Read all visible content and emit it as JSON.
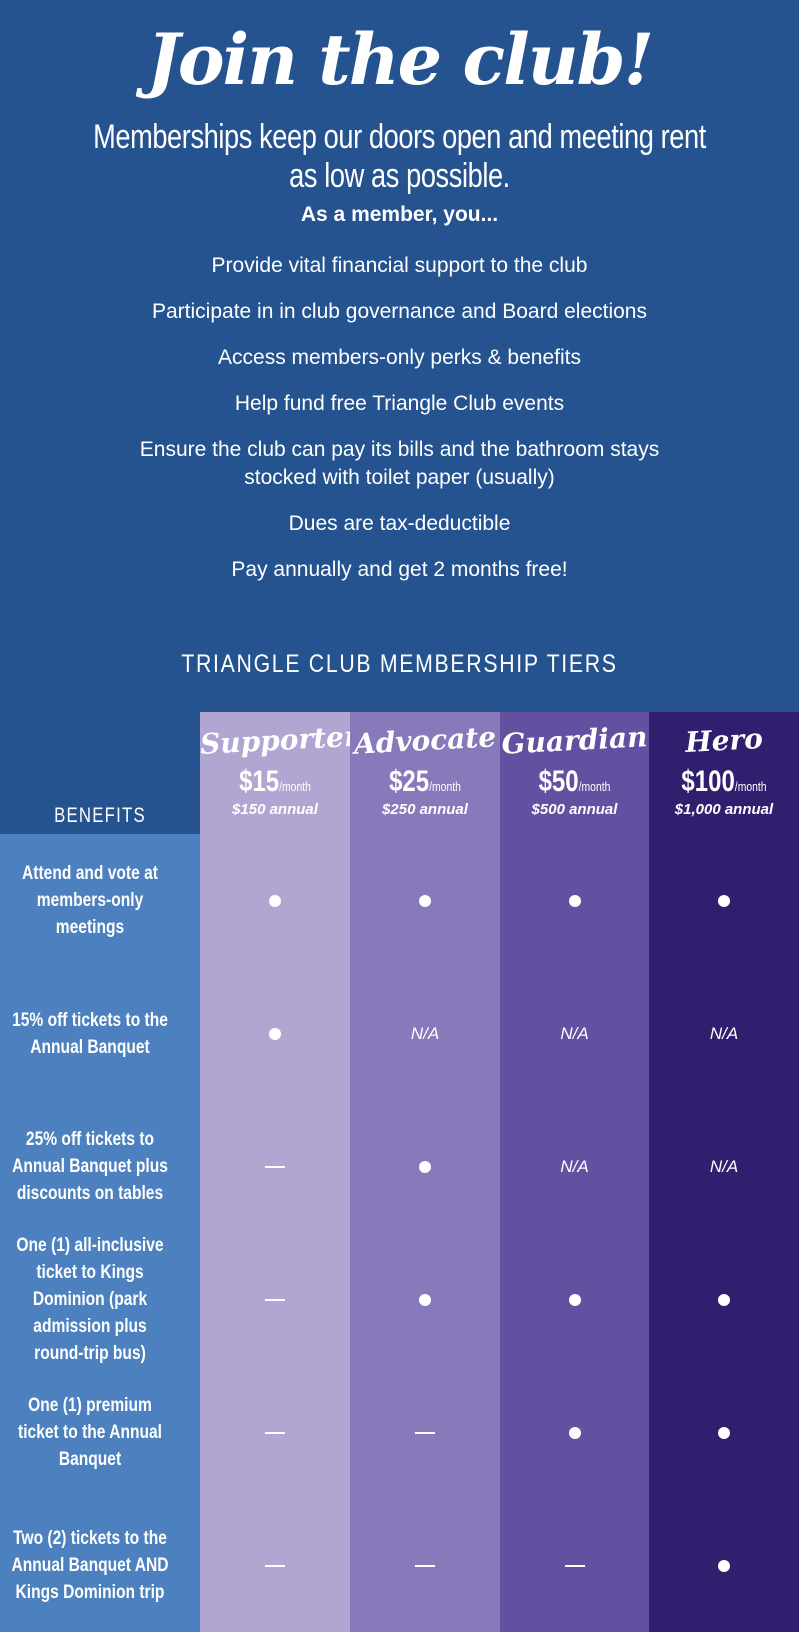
{
  "header": {
    "title": "Join the club!",
    "subtitle": "Memberships keep our doors open and meeting rent as low as possible.",
    "lead": "As a member, you...",
    "benefits_list": [
      "Provide vital financial support to the club",
      "Participate in in club governance and Board elections",
      "Access members-only perks & benefits",
      "Help fund free Triangle Club events",
      "Ensure the club can pay its bills and the bathroom stays stocked with toilet paper (usually)",
      "Dues are tax-deductible",
      "Pay annually and get 2 months free!"
    ]
  },
  "table": {
    "title": "TRIANGLE CLUB MEMBERSHIP TIERS",
    "benefits_header": "BENEFITS",
    "colors": {
      "background": "#25538f",
      "benefits": "#4c80be",
      "tiers": [
        "#b1a5d2",
        "#887aba",
        "#6350a1",
        "#301f6e"
      ]
    },
    "tiers": [
      {
        "name": "Supporter",
        "price": "$15",
        "per": "/month",
        "annual": "$150 annual"
      },
      {
        "name": "Advocate",
        "price": "$25",
        "per": "/month",
        "annual": "$250 annual"
      },
      {
        "name": "Guardian",
        "price": "$50",
        "per": "/month",
        "annual": "$500 annual"
      },
      {
        "name": "Hero",
        "price": "$100",
        "per": "/month",
        "annual": "$1,000 annual"
      }
    ],
    "rows": [
      {
        "benefit": "Attend and vote at members-only meetings",
        "values": [
          "dot",
          "dot",
          "dot",
          "dot"
        ]
      },
      {
        "benefit": "15% off tickets to the Annual Banquet",
        "values": [
          "dot",
          "N/A",
          "N/A",
          "N/A"
        ]
      },
      {
        "benefit": "25% off tickets to Annual Banquet plus discounts on tables",
        "values": [
          "dash",
          "dot",
          "N/A",
          "N/A"
        ]
      },
      {
        "benefit": "One (1) all-inclusive ticket to Kings Dominion (park admission plus round-trip bus)",
        "values": [
          "dash",
          "dot",
          "dot",
          "dot"
        ]
      },
      {
        "benefit": "One (1) premium ticket to the Annual Banquet",
        "values": [
          "dash",
          "dash",
          "dot",
          "dot"
        ]
      },
      {
        "benefit": "Two (2) tickets to the Annual Banquet AND Kings Dominion trip",
        "values": [
          "dash",
          "dash",
          "dash",
          "dot"
        ]
      }
    ]
  }
}
